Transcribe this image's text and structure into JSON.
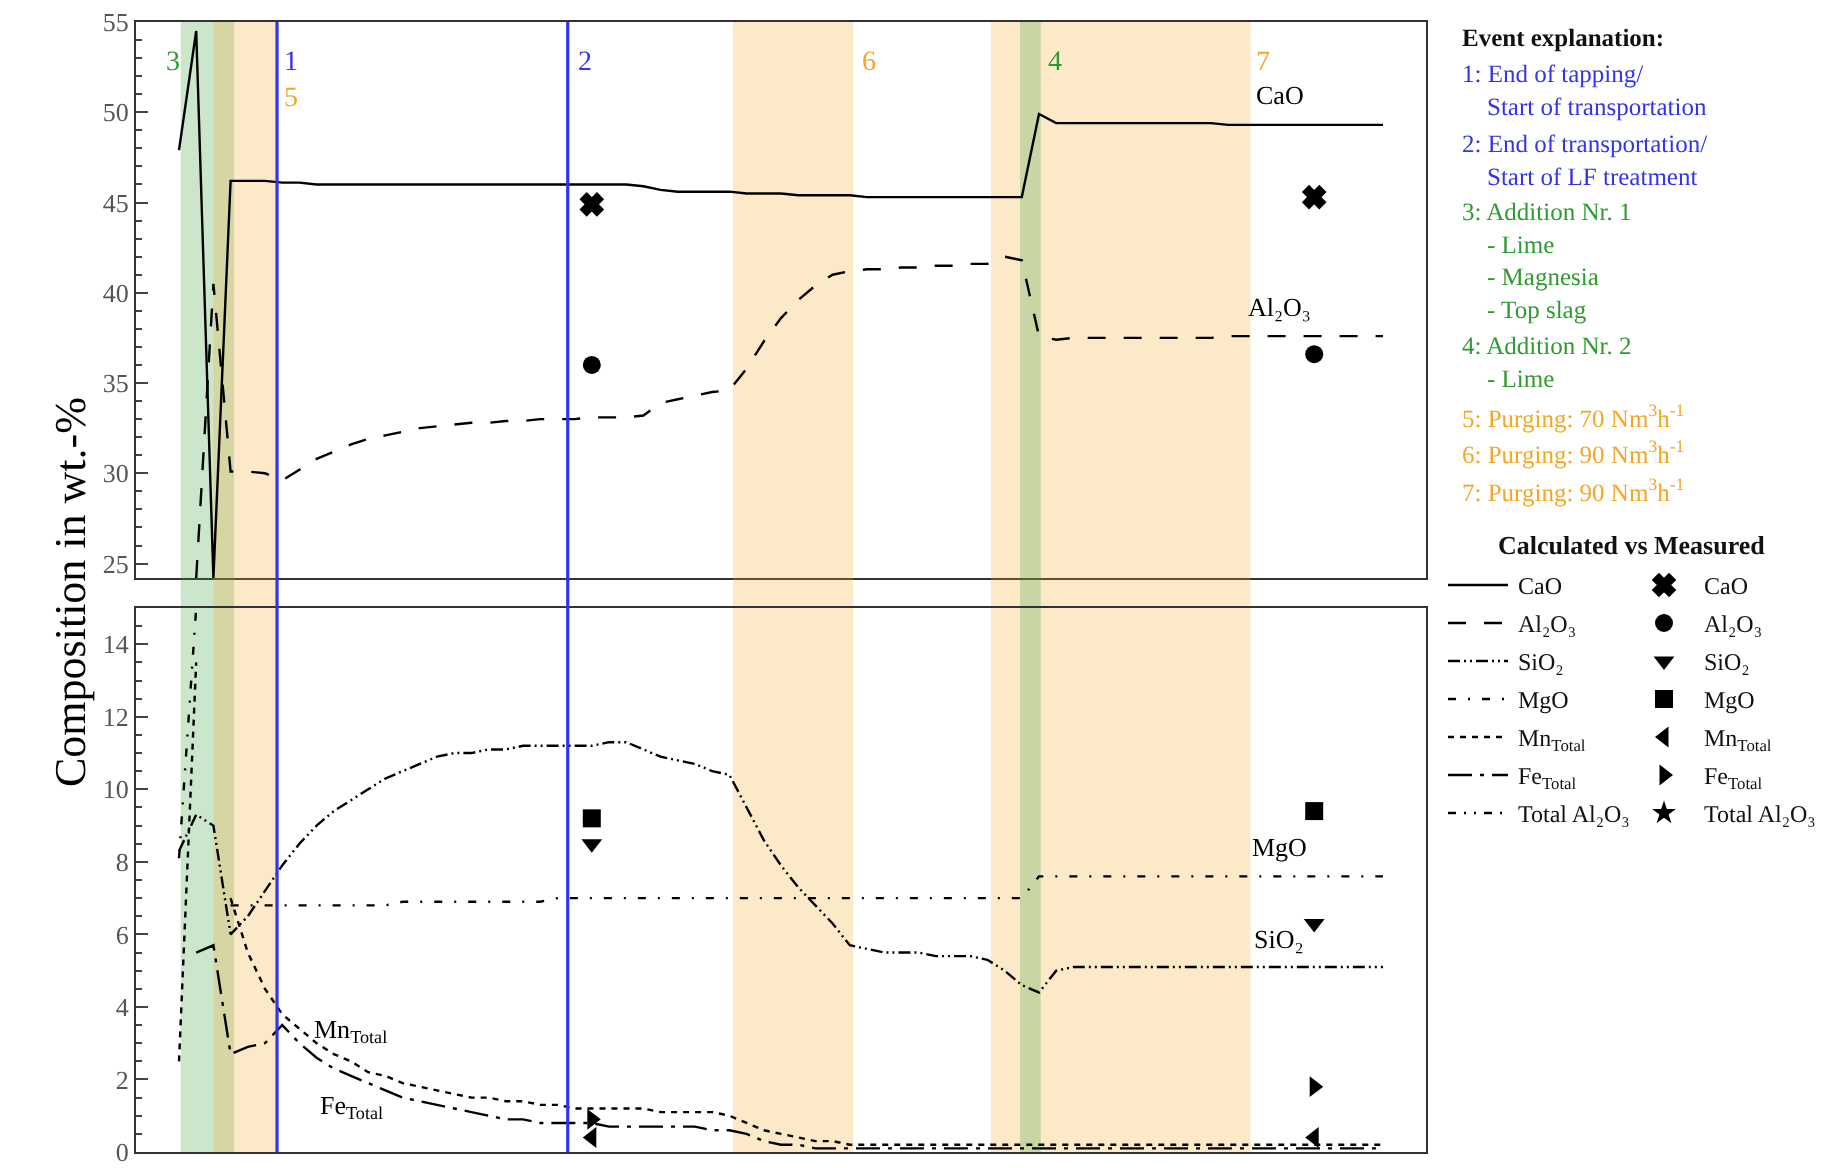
{
  "chart_data": [
    {
      "type": "line",
      "ylabel": "Composition in wt.-%",
      "legend_title": "Calculated vs Measured",
      "legend": "right",
      "tick_labels": "y",
      "categories": [
        null,
        null,
        null,
        null,
        null,
        null,
        null,
        null,
        null,
        null,
        null,
        null,
        null,
        null,
        null,
        null,
        null,
        null,
        null,
        null,
        null,
        null,
        null,
        null,
        null,
        null,
        null,
        null,
        null,
        null,
        null,
        null,
        null,
        null,
        null,
        null,
        null,
        null,
        null,
        null,
        null,
        null,
        null,
        null,
        null,
        null,
        null,
        null,
        null,
        null,
        null,
        null,
        null,
        null,
        null,
        null,
        null,
        null,
        null,
        null,
        null,
        null,
        null,
        null,
        null,
        null,
        null,
        null,
        null,
        null,
        null
      ],
      "ylim": [
        24.2,
        55
      ],
      "yticks": [
        25,
        30,
        35,
        40,
        45,
        50,
        55
      ],
      "series": [
        {
          "name": "CaO",
          "color": "#000000",
          "line_style": "solid",
          "values": [
            47.9,
            54.5,
            24.2,
            46.2,
            46.2,
            46.2,
            46.1,
            46.1,
            46.0,
            46.0,
            46.0,
            46.0,
            46.0,
            46.0,
            46.0,
            46.0,
            46.0,
            46.0,
            46.0,
            46.0,
            46.0,
            46.0,
            46.0,
            46.0,
            46.0,
            46.0,
            46.0,
            45.9,
            45.7,
            45.6,
            45.6,
            45.6,
            45.6,
            45.5,
            45.5,
            45.5,
            45.4,
            45.4,
            45.4,
            45.4,
            45.3,
            45.3,
            45.3,
            45.3,
            45.3,
            45.3,
            45.3,
            45.3,
            45.3,
            45.3,
            49.9,
            49.4,
            49.4,
            49.4,
            49.4,
            49.4,
            49.4,
            49.4,
            49.4,
            49.4,
            49.4,
            49.3,
            49.3,
            49.3,
            49.3,
            49.3,
            49.3,
            49.3,
            49.3,
            49.3,
            49.3
          ]
        },
        {
          "name": "Al₂O₃",
          "color": "#000000",
          "line_style": "dashed",
          "values": [
            null,
            24.2,
            40.5,
            30.1,
            30.1,
            30.0,
            29.6,
            30.2,
            30.8,
            31.2,
            31.6,
            31.9,
            32.1,
            32.3,
            32.5,
            32.6,
            32.7,
            32.8,
            32.8,
            32.9,
            32.9,
            33.0,
            33.0,
            33.0,
            33.1,
            33.1,
            33.1,
            33.2,
            33.9,
            34.1,
            34.3,
            34.5,
            34.6,
            35.8,
            37.3,
            38.6,
            39.6,
            40.4,
            41.0,
            41.2,
            41.3,
            41.3,
            41.4,
            41.4,
            41.5,
            41.5,
            41.6,
            41.6,
            42.0,
            41.8,
            37.6,
            37.4,
            37.5,
            37.5,
            37.5,
            37.5,
            37.5,
            37.5,
            37.5,
            37.5,
            37.5,
            37.6,
            37.6,
            37.6,
            37.6,
            37.6,
            37.6,
            37.6,
            37.6,
            37.6,
            37.6
          ]
        },
        {
          "name": "CaO",
          "type": "scatter",
          "marker": "x",
          "color": "#000000",
          "values": [
            null,
            null,
            null,
            null,
            null,
            null,
            null,
            null,
            null,
            null,
            null,
            null,
            null,
            null,
            null,
            null,
            null,
            null,
            null,
            null,
            null,
            null,
            null,
            null,
            44.9,
            null,
            null,
            null,
            null,
            null,
            null,
            null,
            null,
            null,
            null,
            null,
            null,
            null,
            null,
            null,
            null,
            null,
            null,
            null,
            null,
            null,
            null,
            null,
            null,
            null,
            null,
            null,
            null,
            null,
            null,
            null,
            null,
            null,
            null,
            null,
            null,
            null,
            null,
            null,
            null,
            null,
            45.3,
            null,
            null,
            null,
            null
          ]
        },
        {
          "name": "Al₂O₃",
          "type": "scatter",
          "marker": "circle",
          "color": "#000000",
          "values": [
            null,
            null,
            null,
            null,
            null,
            null,
            null,
            null,
            null,
            null,
            null,
            null,
            null,
            null,
            null,
            null,
            null,
            null,
            null,
            null,
            null,
            null,
            null,
            null,
            36.0,
            null,
            null,
            null,
            null,
            null,
            null,
            null,
            null,
            null,
            null,
            null,
            null,
            null,
            null,
            null,
            null,
            null,
            null,
            null,
            null,
            null,
            null,
            null,
            null,
            null,
            null,
            null,
            null,
            null,
            null,
            null,
            null,
            null,
            null,
            null,
            null,
            null,
            null,
            null,
            null,
            null,
            36.6,
            null,
            null,
            null,
            null
          ]
        }
      ],
      "annotations": [
        "1",
        "2",
        "3",
        "4",
        "5",
        "6",
        "7",
        "Event explanation:",
        "1: End of tapping/\nStart of transportation",
        "2: End of transportation/\nStart of LF treatment",
        "3: Addition Nr. 1\n- Lime\n- Magnesia\n- Top slag",
        "4: Addition Nr. 2\n- Lime",
        "5: Purging: 70 Nm$^{3}$h$^{-1}$",
        "6: Purging: 90 Nm$^{3}$h$^{-1}$",
        "7: Purging: 90 Nm$^{3}$h$^{-1}$"
      ]
    },
    {
      "type": "line",
      "legend": "right",
      "tick_labels": "y",
      "categories": [
        null,
        null,
        null,
        null,
        null,
        null,
        null,
        null,
        null,
        null,
        null,
        null,
        null,
        null,
        null,
        null,
        null,
        null,
        null,
        null,
        null,
        null,
        null,
        null,
        null,
        null,
        null,
        null,
        null,
        null,
        null,
        null,
        null,
        null,
        null,
        null,
        null,
        null,
        null,
        null,
        null,
        null,
        null,
        null,
        null,
        null,
        null,
        null,
        null,
        null,
        null,
        null,
        null,
        null,
        null,
        null,
        null,
        null,
        null,
        null,
        null,
        null,
        null,
        null,
        null,
        null,
        null,
        null,
        null,
        null,
        null
      ],
      "ylim": [
        0,
        15
      ],
      "yticks": [
        0,
        2,
        4,
        6,
        8,
        10,
        12,
        14
      ],
      "series": [
        {
          "name": "SiO₂",
          "color": "#000000",
          "line_style": "dashdot",
          "values": [
            8.3,
            9.3,
            9.0,
            6.0,
            6.5,
            7.2,
            7.9,
            8.5,
            9.0,
            9.4,
            9.7,
            10.0,
            10.3,
            10.5,
            10.7,
            10.9,
            11.0,
            11.0,
            11.1,
            11.1,
            11.2,
            11.2,
            11.2,
            11.2,
            11.2,
            11.3,
            11.3,
            11.1,
            10.9,
            10.8,
            10.7,
            10.5,
            10.4,
            9.5,
            8.6,
            7.9,
            7.3,
            6.8,
            6.3,
            5.7,
            5.6,
            5.5,
            5.5,
            5.5,
            5.4,
            5.4,
            5.4,
            5.3,
            5.0,
            4.6,
            4.4,
            5.0,
            5.1,
            5.1,
            5.1,
            5.1,
            5.1,
            5.1,
            5.1,
            5.1,
            5.1,
            5.1,
            5.1,
            5.1,
            5.1,
            5.1,
            5.1,
            5.1,
            5.1,
            5.1,
            5.1
          ]
        },
        {
          "name": "MgO",
          "color": "#000000",
          "line_style": "sparsedashdot",
          "values": [
            8.1,
            15.0,
            null,
            6.8,
            6.8,
            6.8,
            6.8,
            6.8,
            6.8,
            6.8,
            6.8,
            6.8,
            6.8,
            6.9,
            6.9,
            6.9,
            6.9,
            6.9,
            6.9,
            6.9,
            6.9,
            6.9,
            7.0,
            7.0,
            7.0,
            7.0,
            7.0,
            7.0,
            7.0,
            7.0,
            7.0,
            7.0,
            7.0,
            7.0,
            7.0,
            7.0,
            7.0,
            7.0,
            7.0,
            7.0,
            7.0,
            7.0,
            7.0,
            7.0,
            7.0,
            7.0,
            7.0,
            7.0,
            7.0,
            7.0,
            7.6,
            7.6,
            7.6,
            7.6,
            7.6,
            7.6,
            7.6,
            7.6,
            7.6,
            7.6,
            7.6,
            7.6,
            7.6,
            7.6,
            7.6,
            7.6,
            7.6,
            7.6,
            7.6,
            7.6,
            7.6
          ]
        },
        {
          "name": "Mn$_{Total}$",
          "color": "#000000",
          "line_style": "dotted",
          "values": [
            2.5,
            13.5,
            null,
            7.0,
            5.5,
            4.5,
            3.8,
            3.4,
            3.0,
            2.7,
            2.5,
            2.2,
            2.1,
            1.9,
            1.8,
            1.7,
            1.6,
            1.5,
            1.5,
            1.4,
            1.4,
            1.3,
            1.3,
            1.2,
            1.2,
            1.2,
            1.2,
            1.2,
            1.1,
            1.1,
            1.1,
            1.1,
            1.0,
            0.8,
            0.6,
            0.5,
            0.4,
            0.3,
            0.3,
            0.2,
            0.2,
            0.2,
            0.2,
            0.2,
            0.2,
            0.2,
            0.2,
            0.2,
            0.2,
            0.2,
            0.2,
            0.2,
            0.2,
            0.2,
            0.2,
            0.2,
            0.2,
            0.2,
            0.2,
            0.2,
            0.2,
            0.2,
            0.2,
            0.2,
            0.2,
            0.2,
            0.2,
            0.2,
            0.2,
            0.2,
            0.2
          ]
        },
        {
          "name": "Fe$_{Total}$",
          "color": "#000000",
          "line_style": "longdashdot",
          "values": [
            null,
            5.5,
            5.7,
            2.7,
            2.9,
            3.0,
            3.5,
            3.0,
            2.6,
            2.3,
            2.1,
            1.9,
            1.7,
            1.5,
            1.4,
            1.3,
            1.2,
            1.1,
            1.0,
            0.9,
            0.9,
            0.8,
            0.8,
            0.8,
            0.8,
            0.7,
            0.7,
            0.7,
            0.7,
            0.7,
            0.7,
            0.6,
            0.6,
            0.5,
            0.3,
            0.2,
            0.2,
            0.1,
            0.1,
            0.1,
            0.1,
            0.1,
            0.1,
            0.1,
            0.1,
            0.1,
            0.1,
            0.1,
            0.1,
            0.1,
            0.1,
            0.1,
            0.1,
            0.1,
            0.1,
            0.1,
            0.1,
            0.1,
            0.1,
            0.1,
            0.1,
            0.1,
            0.1,
            0.1,
            0.1,
            0.1,
            0.1,
            0.1,
            0.1,
            0.1,
            0.1
          ]
        },
        {
          "name": "Total Al₂O₃",
          "color": "#000000",
          "line_style": "dashdotdot",
          "values": [
            null,
            null,
            null,
            null,
            null,
            null,
            null,
            null,
            null,
            null,
            null,
            null,
            null,
            null,
            null,
            null,
            null,
            null,
            null,
            null,
            null,
            null,
            null,
            null,
            null,
            null,
            null,
            null,
            null,
            null,
            null,
            null,
            null,
            null,
            null,
            null,
            null,
            null,
            null,
            null,
            null,
            null,
            null,
            null,
            null,
            null,
            null,
            null,
            null,
            null,
            null,
            null,
            null,
            null,
            null,
            null,
            null,
            null,
            null,
            null,
            null,
            null,
            null,
            null,
            null,
            null,
            null,
            null,
            null,
            null,
            null
          ]
        },
        {
          "name": "SiO₂",
          "type": "scatter",
          "marker": "triangle-down",
          "color": "#000000",
          "values": [
            null,
            null,
            null,
            null,
            null,
            null,
            null,
            null,
            null,
            null,
            null,
            null,
            null,
            null,
            null,
            null,
            null,
            null,
            null,
            null,
            null,
            null,
            null,
            null,
            8.5,
            null,
            null,
            null,
            null,
            null,
            null,
            null,
            null,
            null,
            null,
            null,
            null,
            null,
            null,
            null,
            null,
            null,
            null,
            null,
            null,
            null,
            null,
            null,
            null,
            null,
            null,
            null,
            null,
            null,
            null,
            null,
            null,
            null,
            null,
            null,
            null,
            null,
            null,
            null,
            null,
            null,
            6.3,
            null,
            null,
            null,
            null
          ]
        },
        {
          "name": "MgO",
          "type": "scatter",
          "marker": "square",
          "color": "#000000",
          "values": [
            null,
            null,
            null,
            null,
            null,
            null,
            null,
            null,
            null,
            null,
            null,
            null,
            null,
            null,
            null,
            null,
            null,
            null,
            null,
            null,
            null,
            null,
            null,
            null,
            9.2,
            null,
            null,
            null,
            null,
            null,
            null,
            null,
            null,
            null,
            null,
            null,
            null,
            null,
            null,
            null,
            null,
            null,
            null,
            null,
            null,
            null,
            null,
            null,
            null,
            null,
            null,
            null,
            null,
            null,
            null,
            null,
            null,
            null,
            null,
            null,
            null,
            null,
            null,
            null,
            null,
            null,
            9.4,
            null,
            null,
            null,
            null
          ]
        },
        {
          "name": "Mn$_{Total}$",
          "type": "scatter",
          "marker": "triangle-left",
          "color": "#000000",
          "values": [
            null,
            null,
            null,
            null,
            null,
            null,
            null,
            null,
            null,
            null,
            null,
            null,
            null,
            null,
            null,
            null,
            null,
            null,
            null,
            null,
            null,
            null,
            null,
            null,
            0.4,
            null,
            null,
            null,
            null,
            null,
            null,
            null,
            null,
            null,
            null,
            null,
            null,
            null,
            null,
            null,
            null,
            null,
            null,
            null,
            null,
            null,
            null,
            null,
            null,
            null,
            null,
            null,
            null,
            null,
            null,
            null,
            null,
            null,
            null,
            null,
            null,
            null,
            null,
            null,
            null,
            null,
            0.4,
            null,
            null,
            null,
            null
          ]
        },
        {
          "name": "Fe$_{Total}$",
          "type": "scatter",
          "marker": "triangle-right",
          "color": "#000000",
          "values": [
            null,
            null,
            null,
            null,
            null,
            null,
            null,
            null,
            null,
            null,
            null,
            null,
            null,
            null,
            null,
            null,
            null,
            null,
            null,
            null,
            null,
            null,
            null,
            null,
            0.9,
            null,
            null,
            null,
            null,
            null,
            null,
            null,
            null,
            null,
            null,
            null,
            null,
            null,
            null,
            null,
            null,
            null,
            null,
            null,
            null,
            null,
            null,
            null,
            null,
            null,
            null,
            null,
            null,
            null,
            null,
            null,
            null,
            null,
            null,
            null,
            null,
            null,
            null,
            null,
            null,
            null,
            1.8,
            null,
            null,
            null,
            null
          ]
        },
        {
          "name": "Total Al₂O₃",
          "type": "scatter",
          "marker": "star",
          "color": "#000000",
          "values": [
            null,
            null,
            null,
            null,
            null,
            null,
            null,
            null,
            null,
            null,
            null,
            null,
            null,
            null,
            null,
            null,
            null,
            null,
            null,
            null,
            null,
            null,
            null,
            null,
            null,
            null,
            null,
            null,
            null,
            null,
            null,
            null,
            null,
            null,
            null,
            null,
            null,
            null,
            null,
            null,
            null,
            null,
            null,
            null,
            null,
            null,
            null,
            null,
            null,
            null,
            null,
            null,
            null,
            null,
            null,
            null,
            null,
            null,
            null,
            null,
            null,
            null,
            null,
            null,
            null,
            null,
            null,
            null,
            null,
            null,
            null
          ]
        }
      ]
    }
  ]
}
